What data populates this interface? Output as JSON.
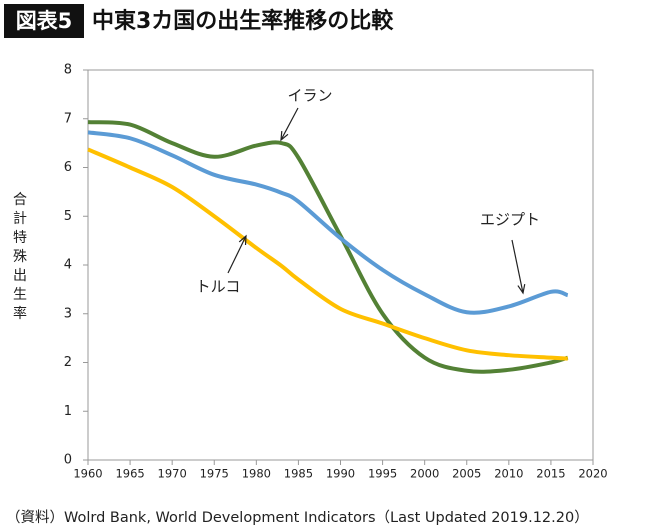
{
  "chart_data": {
    "type": "line",
    "badge": "図表5",
    "title": "中東3カ国の出生率推移の比較",
    "y_label": "合計特殊出生率",
    "source": "（資料）Wolrd Bank, World Development Indicators（Last Updated  2019.12.20）",
    "x": [
      1960,
      1965,
      1970,
      1975,
      1980,
      1983,
      1985,
      1990,
      1995,
      2000,
      2005,
      2010,
      2015,
      2017
    ],
    "series": [
      {
        "name": "イラン",
        "color": "#538135",
        "values": [
          6.93,
          6.88,
          6.5,
          6.22,
          6.45,
          6.5,
          6.2,
          4.6,
          3.0,
          2.1,
          1.83,
          1.85,
          2.0,
          2.1
        ]
      },
      {
        "name": "エジプト",
        "color": "#5b9bd5",
        "values": [
          6.72,
          6.6,
          6.25,
          5.85,
          5.65,
          5.48,
          5.3,
          4.55,
          3.9,
          3.4,
          3.03,
          3.15,
          3.45,
          3.38
        ]
      },
      {
        "name": "トルコ",
        "color": "#ffc000",
        "values": [
          6.37,
          6.0,
          5.6,
          5.0,
          4.35,
          3.98,
          3.7,
          3.1,
          2.8,
          2.5,
          2.25,
          2.15,
          2.1,
          2.08
        ]
      }
    ],
    "xlim": [
      1960,
      2020
    ],
    "xticks": [
      1960,
      1965,
      1970,
      1975,
      1980,
      1985,
      1990,
      1995,
      2000,
      2005,
      2010,
      2015,
      2020
    ],
    "ylim": [
      0,
      8
    ],
    "yticks": [
      0,
      1,
      2,
      3,
      4,
      5,
      6,
      7,
      8
    ]
  }
}
